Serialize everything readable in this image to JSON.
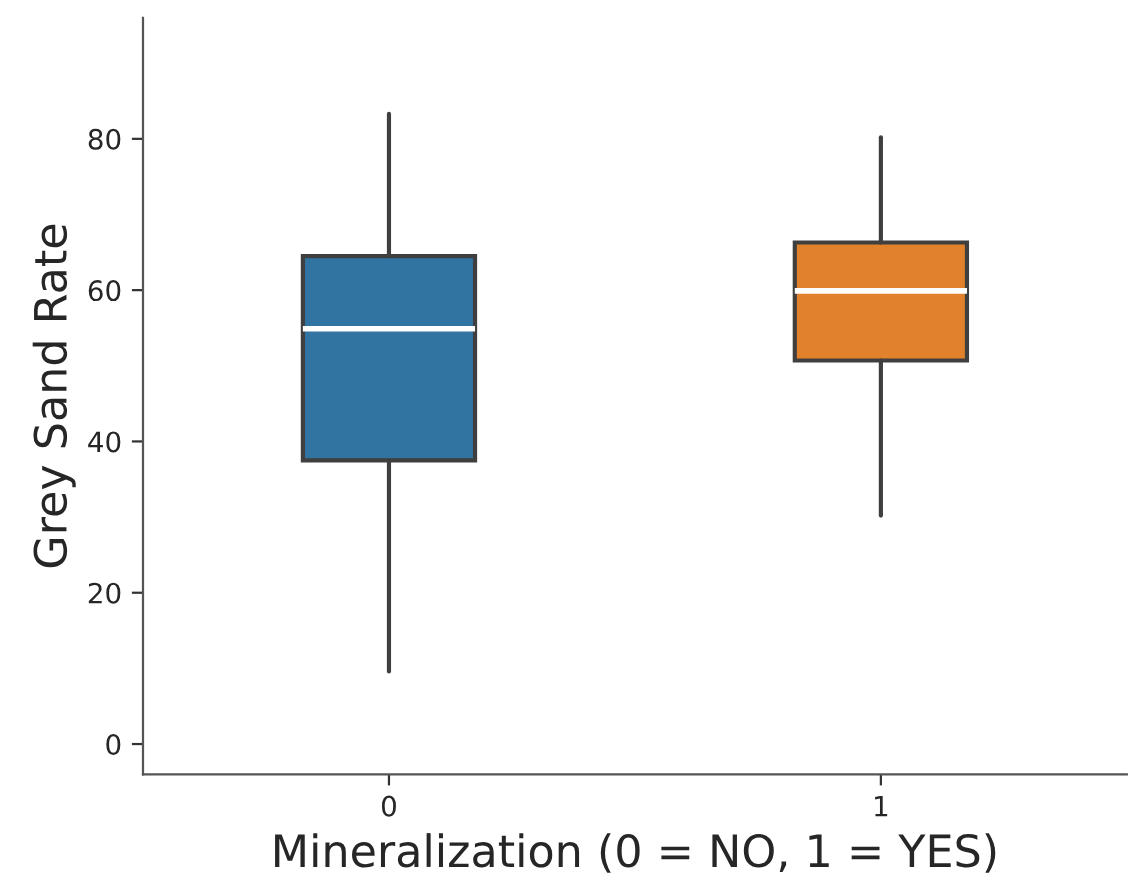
{
  "chart_data": {
    "type": "box",
    "xlabel": "Mineralization (0 = NO, 1 = YES)",
    "ylabel": "Grey Sand Rate",
    "categories": [
      "0",
      "1"
    ],
    "boxes": [
      {
        "low": 9.6,
        "q1": 37.5,
        "median": 54.9,
        "q3": 64.5,
        "high": 83.3
      },
      {
        "low": 30.2,
        "q1": 50.7,
        "median": 59.9,
        "q3": 66.3,
        "high": 80.2
      }
    ],
    "colors": [
      "#3274a1",
      "#e1812c"
    ],
    "ylim": [
      -4,
      96
    ],
    "yticks": [
      0,
      20,
      40,
      60,
      80
    ],
    "grid": false
  }
}
